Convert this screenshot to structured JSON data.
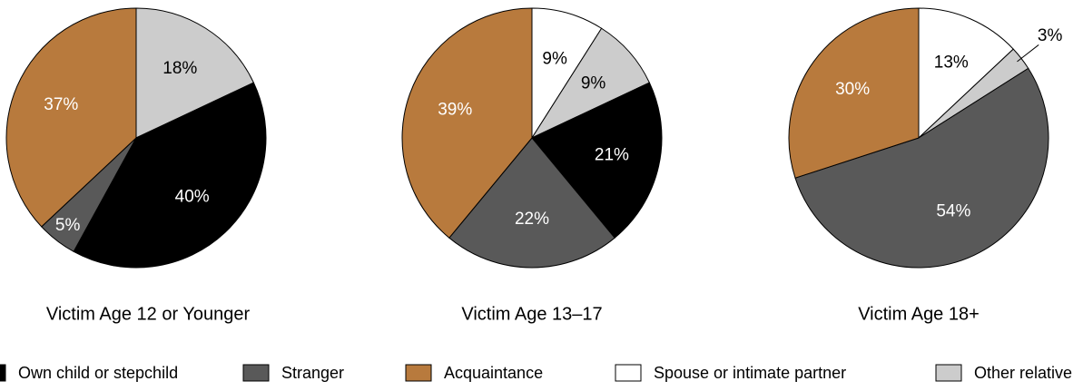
{
  "chart_data": [
    {
      "type": "pie",
      "title": "Victim Age 12 or Younger",
      "categories": [
        "Other relative",
        "Own child or stepchild",
        "Stranger",
        "Acquaintance"
      ],
      "values": [
        18,
        40,
        5,
        37
      ],
      "value_labels": [
        "18%",
        "40%",
        "5%",
        "37%"
      ]
    },
    {
      "type": "pie",
      "title": "Victim Age 13–17",
      "categories": [
        "Spouse or intimate partner",
        "Other relative",
        "Own child or stepchild",
        "Stranger",
        "Acquaintance"
      ],
      "values": [
        9,
        9,
        21,
        22,
        39
      ],
      "value_labels": [
        "9%",
        "9%",
        "21%",
        "22%",
        "39%"
      ]
    },
    {
      "type": "pie",
      "title": "Victim Age 18+",
      "categories": [
        "Spouse or intimate partner",
        "Other relative",
        "Stranger",
        "Acquaintance"
      ],
      "values": [
        13,
        3,
        54,
        30
      ],
      "value_labels": [
        "13%",
        "3%",
        "54%",
        "30%"
      ]
    }
  ],
  "legend": {
    "names": [
      "Own child or stepchild",
      "Stranger",
      "Acquaintance",
      "Spouse or intimate partner",
      "Other relative"
    ],
    "colors": [
      "#000000",
      "#595959",
      "#b87a3d",
      "#ffffff",
      "#cccccc"
    ]
  }
}
